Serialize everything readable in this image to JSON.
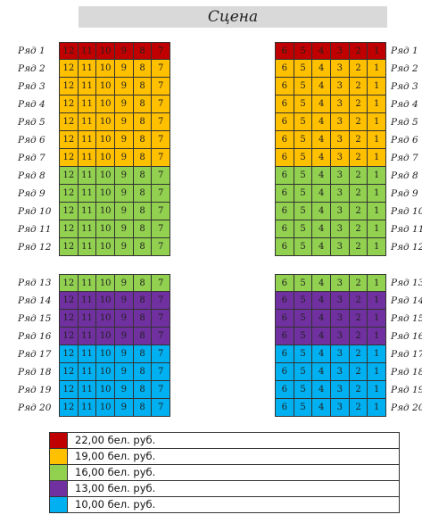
{
  "stage": {
    "label": "Сцена"
  },
  "colors": {
    "p22": "#c00000",
    "p19": "#ffc000",
    "p16": "#92d050",
    "p13": "#7030a0",
    "p10": "#00b0f0"
  },
  "sections": [
    {
      "id": "top",
      "left_seats": [
        "12",
        "11",
        "10",
        "9",
        "8",
        "7"
      ],
      "right_seats": [
        "6",
        "5",
        "4",
        "3",
        "2",
        "1"
      ],
      "rows": [
        {
          "label": "Ряд 1",
          "price": "p22"
        },
        {
          "label": "Ряд 2",
          "price": "p19"
        },
        {
          "label": "Ряд 3",
          "price": "p19"
        },
        {
          "label": "Ряд 4",
          "price": "p19"
        },
        {
          "label": "Ряд 5",
          "price": "p19"
        },
        {
          "label": "Ряд 6",
          "price": "p19"
        },
        {
          "label": "Ряд 7",
          "price": "p19"
        },
        {
          "label": "Ряд 8",
          "price": "p16"
        },
        {
          "label": "Ряд 9",
          "price": "p16"
        },
        {
          "label": "Ряд 10",
          "price": "p16"
        },
        {
          "label": "Ряд 11",
          "price": "p16"
        },
        {
          "label": "Ряд 12",
          "price": "p16"
        }
      ]
    },
    {
      "id": "bottom",
      "left_seats": [
        "12",
        "11",
        "10",
        "9",
        "8",
        "7"
      ],
      "right_seats": [
        "6",
        "5",
        "4",
        "3",
        "2",
        "1"
      ],
      "rows": [
        {
          "label": "Ряд 13",
          "price": "p16"
        },
        {
          "label": "Ряд 14",
          "price": "p13"
        },
        {
          "label": "Ряд 15",
          "price": "p13"
        },
        {
          "label": "Ряд 16",
          "price": "p13"
        },
        {
          "label": "Ряд 17",
          "price": "p10"
        },
        {
          "label": "Ряд 18",
          "price": "p10"
        },
        {
          "label": "Ряд 19",
          "price": "p10"
        },
        {
          "label": "Ряд 20",
          "price": "p10"
        }
      ]
    }
  ],
  "legend": [
    {
      "price": "p22",
      "text": "22,00 бел. руб."
    },
    {
      "price": "p19",
      "text": "19,00 бел. руб."
    },
    {
      "price": "p16",
      "text": "16,00 бел. руб."
    },
    {
      "price": "p13",
      "text": "13,00 бел. руб."
    },
    {
      "price": "p10",
      "text": "10,00 бел. руб."
    }
  ]
}
